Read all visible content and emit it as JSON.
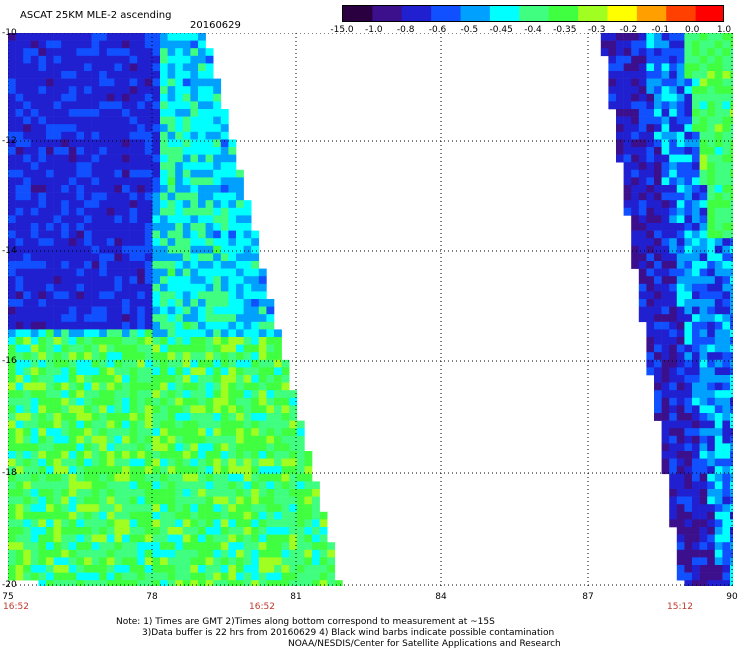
{
  "header": {
    "title": "ASCAT 25KM MLE-2 ascending",
    "date": "20160629"
  },
  "colorbar": {
    "labels": [
      "-15.0",
      "-1.0",
      "-0.8",
      "-0.6",
      "-0.5",
      "-0.45",
      "-0.4",
      "-0.35",
      "-0.3",
      "-0.2",
      "-0.1",
      "0.0",
      "1.0"
    ],
    "colors": [
      "#2a0040",
      "#3c0f8c",
      "#2020d0",
      "#1050ff",
      "#00a0ff",
      "#00ffff",
      "#40ff80",
      "#40ff40",
      "#a0ff20",
      "#ffff00",
      "#ffa000",
      "#ff4000",
      "#ff0000"
    ]
  },
  "map": {
    "lon_range": [
      75,
      90
    ],
    "lat_range": [
      -20,
      -10
    ],
    "y_ticks": [
      "-10",
      "-12",
      "-14",
      "-16",
      "-18",
      "-20"
    ],
    "x_ticks": [
      "75",
      "78",
      "81",
      "84",
      "87",
      "90"
    ],
    "pass_times": [
      "16:52",
      "16:52",
      "15:12"
    ]
  },
  "notes": {
    "line1": "Note: 1) Times are GMT 2)Times along bottom correspond to measurement at ~15S",
    "line2": "3)Data buffer is 22 hrs from 20160629 4) Black wind barbs indicate possible contamination",
    "line3": "NOAA/NESDIS/Center for Satellite Applications and Research"
  }
}
